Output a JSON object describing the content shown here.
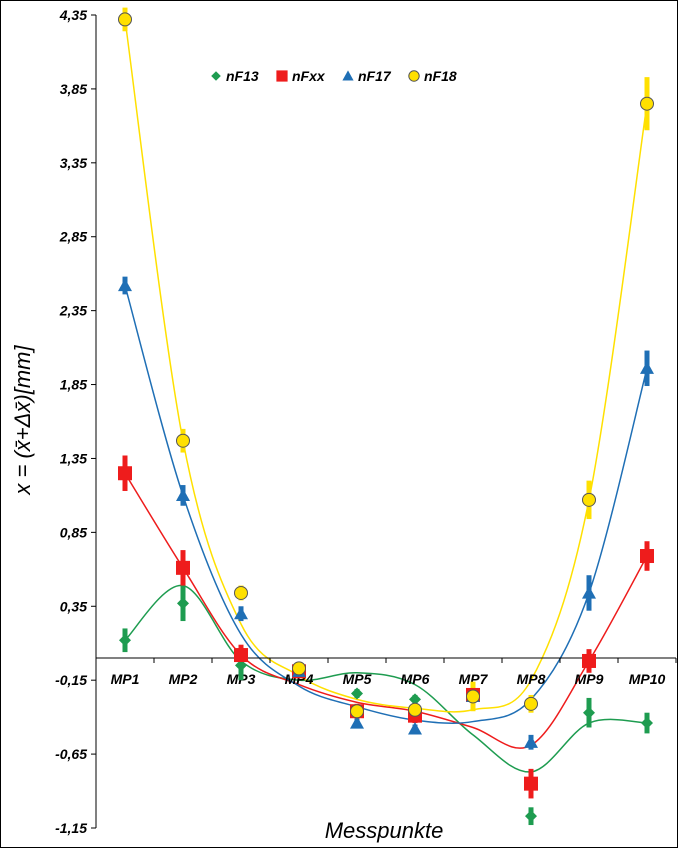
{
  "chart_data": {
    "type": "scatter",
    "xlabel": "Messpunkte",
    "ylabel": "x = (x̄+Δx̄)[mm]",
    "ylim": [
      -1.15,
      4.35
    ],
    "yticks": [
      "4,35",
      "3,85",
      "3,35",
      "2,85",
      "2,35",
      "1,85",
      "1,35",
      "0,85",
      "0,35",
      "-0,15",
      "-0,65",
      "-1,15"
    ],
    "ytick_values": [
      4.35,
      3.85,
      3.35,
      2.85,
      2.35,
      1.85,
      1.35,
      0.85,
      0.35,
      -0.15,
      -0.65,
      -1.15
    ],
    "categories": [
      "MP1",
      "MP2",
      "MP3",
      "MP4",
      "MP5",
      "MP6",
      "MP7",
      "MP8",
      "MP9",
      "MP10"
    ],
    "grid": false,
    "legend_position": "top",
    "series": [
      {
        "name": "nF13",
        "marker": "diamond",
        "color": "#1e9c50",
        "values": [
          0.12,
          0.37,
          -0.05,
          -0.09,
          -0.24,
          -0.28,
          -0.26,
          -1.07,
          -0.37,
          -0.44
        ],
        "errors": [
          0.08,
          0.12,
          0.1,
          0.03,
          0.03,
          0.03,
          0.05,
          0.06,
          0.1,
          0.07
        ],
        "trend": [
          0.12,
          0.49,
          -0.02,
          -0.15,
          -0.1,
          -0.18,
          -0.52,
          -0.77,
          -0.44,
          -0.44
        ]
      },
      {
        "name": "nFxx",
        "marker": "square",
        "color": "#ee1c1c",
        "values": [
          1.25,
          0.61,
          0.02,
          -0.09,
          -0.36,
          -0.39,
          -0.25,
          -0.85,
          -0.02,
          0.69
        ],
        "errors": [
          0.12,
          0.12,
          0.07,
          0.03,
          0.05,
          0.05,
          0.06,
          0.1,
          0.08,
          0.1
        ],
        "trend": [
          1.25,
          0.61,
          0.02,
          -0.18,
          -0.3,
          -0.36,
          -0.47,
          -0.59,
          -0.02,
          0.69
        ]
      },
      {
        "name": "nF17",
        "marker": "triangle",
        "color": "#1f6fb5",
        "values": [
          2.52,
          1.1,
          0.3,
          -0.09,
          -0.44,
          -0.48,
          -0.26,
          -0.57,
          0.44,
          1.96
        ],
        "errors": [
          0.06,
          0.07,
          0.05,
          0.03,
          0.03,
          0.03,
          0.06,
          0.05,
          0.12,
          0.12
        ],
        "trend": [
          2.52,
          1.1,
          0.16,
          -0.19,
          -0.33,
          -0.42,
          -0.43,
          -0.28,
          0.44,
          1.96
        ]
      },
      {
        "name": "nF18",
        "marker": "circle",
        "color": "#ffe000",
        "values": [
          4.32,
          1.47,
          0.44,
          -0.07,
          -0.36,
          -0.35,
          -0.26,
          -0.31,
          1.07,
          3.75
        ],
        "errors": [
          0.08,
          0.08,
          0.05,
          0.03,
          0.03,
          0.03,
          0.1,
          0.06,
          0.13,
          0.18
        ],
        "trend": [
          4.32,
          1.47,
          0.23,
          -0.12,
          -0.28,
          -0.34,
          -0.35,
          -0.15,
          1.07,
          3.75
        ]
      }
    ]
  }
}
